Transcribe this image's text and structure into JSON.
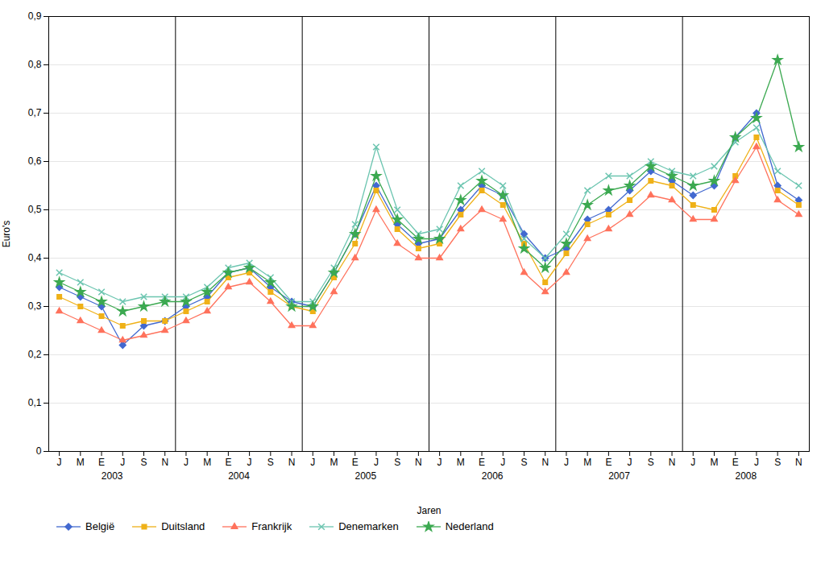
{
  "chart_data": {
    "type": "line",
    "xlabel": "Jaren",
    "ylabel": "Euro's",
    "categories": [
      "J",
      "M",
      "E",
      "J",
      "S",
      "N",
      "J",
      "M",
      "E",
      "J",
      "S",
      "N",
      "J",
      "M",
      "E",
      "J",
      "S",
      "N",
      "J",
      "M",
      "E",
      "J",
      "S",
      "N",
      "J",
      "M",
      "E",
      "J",
      "S",
      "N",
      "J",
      "M",
      "E",
      "J",
      "S",
      "N"
    ],
    "year_labels": [
      "2003",
      "2004",
      "2005",
      "2006",
      "2007",
      "2008"
    ],
    "series": [
      {
        "name": "België",
        "marker": "diamond",
        "values": [
          0.34,
          0.32,
          0.3,
          0.22,
          0.26,
          0.27,
          0.3,
          0.32,
          0.37,
          0.38,
          0.34,
          0.31,
          0.3,
          0.37,
          0.45,
          0.55,
          0.47,
          0.43,
          0.44,
          0.5,
          0.55,
          0.53,
          0.45,
          0.4,
          0.42,
          0.48,
          0.5,
          0.54,
          0.58,
          0.56,
          0.53,
          0.55,
          0.65,
          0.7,
          0.55,
          0.52
        ]
      },
      {
        "name": "Duitsland",
        "marker": "square",
        "values": [
          0.32,
          0.3,
          0.28,
          0.26,
          0.27,
          0.27,
          0.29,
          0.31,
          0.36,
          0.37,
          0.33,
          0.3,
          0.29,
          0.36,
          0.43,
          0.54,
          0.46,
          0.42,
          0.43,
          0.49,
          0.54,
          0.51,
          0.43,
          0.35,
          0.41,
          0.47,
          0.49,
          0.52,
          0.56,
          0.55,
          0.51,
          0.5,
          0.57,
          0.65,
          0.54,
          0.51
        ]
      },
      {
        "name": "Frankrijk",
        "marker": "triangle",
        "values": [
          0.29,
          0.27,
          0.25,
          0.23,
          0.24,
          0.25,
          0.27,
          0.29,
          0.34,
          0.35,
          0.31,
          0.26,
          0.26,
          0.33,
          0.4,
          0.5,
          0.43,
          0.4,
          0.4,
          0.46,
          0.5,
          0.48,
          0.37,
          0.33,
          0.37,
          0.44,
          0.46,
          0.49,
          0.53,
          0.52,
          0.48,
          0.48,
          0.56,
          0.63,
          0.52,
          0.49
        ]
      },
      {
        "name": "Denemarken",
        "marker": "x",
        "values": [
          0.37,
          0.35,
          0.33,
          0.31,
          0.32,
          0.32,
          0.32,
          0.34,
          0.38,
          0.39,
          0.36,
          0.31,
          0.31,
          0.38,
          0.47,
          0.63,
          0.5,
          0.45,
          0.46,
          0.55,
          0.58,
          0.55,
          0.44,
          0.4,
          0.45,
          0.54,
          0.57,
          0.57,
          0.6,
          0.58,
          0.57,
          0.59,
          0.64,
          0.67,
          0.58,
          0.55
        ]
      },
      {
        "name": "Nederland",
        "marker": "star",
        "values": [
          0.35,
          0.33,
          0.31,
          0.29,
          0.3,
          0.31,
          0.31,
          0.33,
          0.37,
          0.38,
          0.35,
          0.3,
          0.3,
          0.37,
          0.45,
          0.57,
          0.48,
          0.44,
          0.44,
          0.52,
          0.56,
          0.53,
          0.42,
          0.38,
          0.43,
          0.51,
          0.54,
          0.55,
          0.59,
          0.57,
          0.55,
          0.56,
          0.65,
          0.69,
          0.81,
          0.63
        ]
      }
    ],
    "ylim": [
      0,
      0.9
    ],
    "yticks": [
      0,
      {
        "value": 0.1,
        "label": "0,1"
      },
      {
        "value": 0.2,
        "label": "0,2"
      },
      {
        "value": 0.3,
        "label": "0,3"
      },
      {
        "value": 0.4,
        "label": "0,4"
      },
      {
        "value": 0.5,
        "label": "0,5"
      },
      {
        "value": 0.6,
        "label": "0,6"
      },
      {
        "value": 0.7,
        "label": "0,7"
      },
      {
        "value": 0.8,
        "label": "0,8"
      },
      {
        "value": 0.9,
        "label": "0,9"
      }
    ],
    "grid": true,
    "legend": "bottom"
  }
}
